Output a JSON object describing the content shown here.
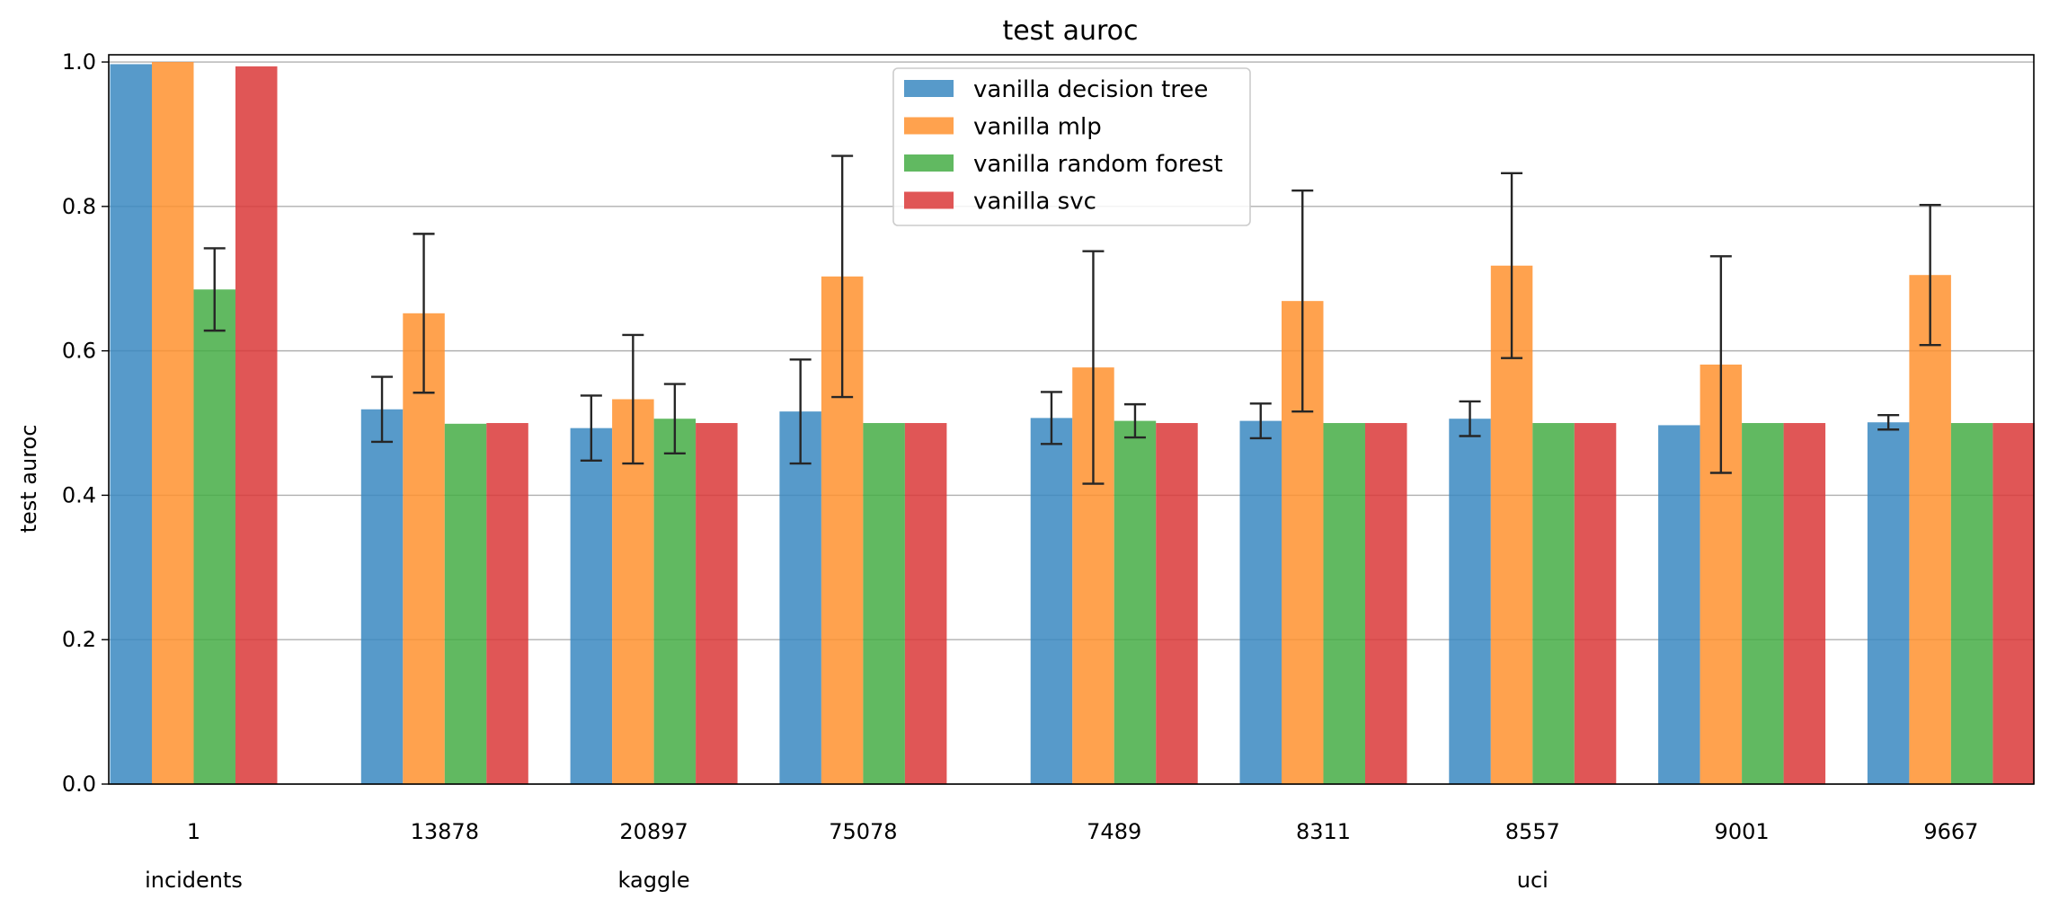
{
  "chart_data": {
    "type": "bar",
    "title": "test auroc",
    "ylabel": "test auroc",
    "xlabel": "",
    "ylim": [
      0,
      1.0
    ],
    "yticks": [
      "0.0",
      "0.2",
      "0.4",
      "0.6",
      "0.8",
      "1.0"
    ],
    "grid": "horizontal",
    "legend_position": "top-center",
    "categories": [
      "1",
      "13878",
      "20897",
      "75078",
      "7489",
      "8311",
      "8557",
      "9001",
      "9667"
    ],
    "groups": [
      {
        "label": "incidents",
        "categories": [
          "1"
        ]
      },
      {
        "label": "kaggle",
        "categories": [
          "13878",
          "20897",
          "75078"
        ]
      },
      {
        "label": "uci",
        "categories": [
          "7489",
          "8311",
          "8557",
          "9001",
          "9667"
        ]
      }
    ],
    "series": [
      {
        "name": "vanilla decision tree",
        "color": "#3a88c1",
        "values": [
          0.997,
          0.519,
          0.493,
          0.516,
          0.507,
          0.503,
          0.506,
          0.497,
          0.501
        ],
        "err": [
          0.0,
          0.045,
          0.045,
          0.072,
          0.036,
          0.024,
          0.024,
          0.0,
          0.01
        ]
      },
      {
        "name": "vanilla mlp",
        "color": "#ff922f",
        "values": [
          1.0,
          0.652,
          0.533,
          0.703,
          0.577,
          0.669,
          0.718,
          0.581,
          0.705
        ],
        "err": [
          0.0,
          0.11,
          0.089,
          0.167,
          0.161,
          0.153,
          0.128,
          0.15,
          0.097
        ]
      },
      {
        "name": "vanilla random forest",
        "color": "#45ad45",
        "values": [
          0.685,
          0.499,
          0.506,
          0.5,
          0.503,
          0.5,
          0.5,
          0.5,
          0.5
        ],
        "err": [
          0.057,
          0.0,
          0.048,
          0.0,
          0.023,
          0.0,
          0.0,
          0.0,
          0.0
        ]
      },
      {
        "name": "vanilla svc",
        "color": "#da3838",
        "values": [
          0.994,
          0.5,
          0.5,
          0.5,
          0.5,
          0.5,
          0.5,
          0.5,
          0.5
        ],
        "err": [
          0.0,
          0.0,
          0.0,
          0.0,
          0.0,
          0.0,
          0.0,
          0.0,
          0.0
        ]
      }
    ]
  }
}
